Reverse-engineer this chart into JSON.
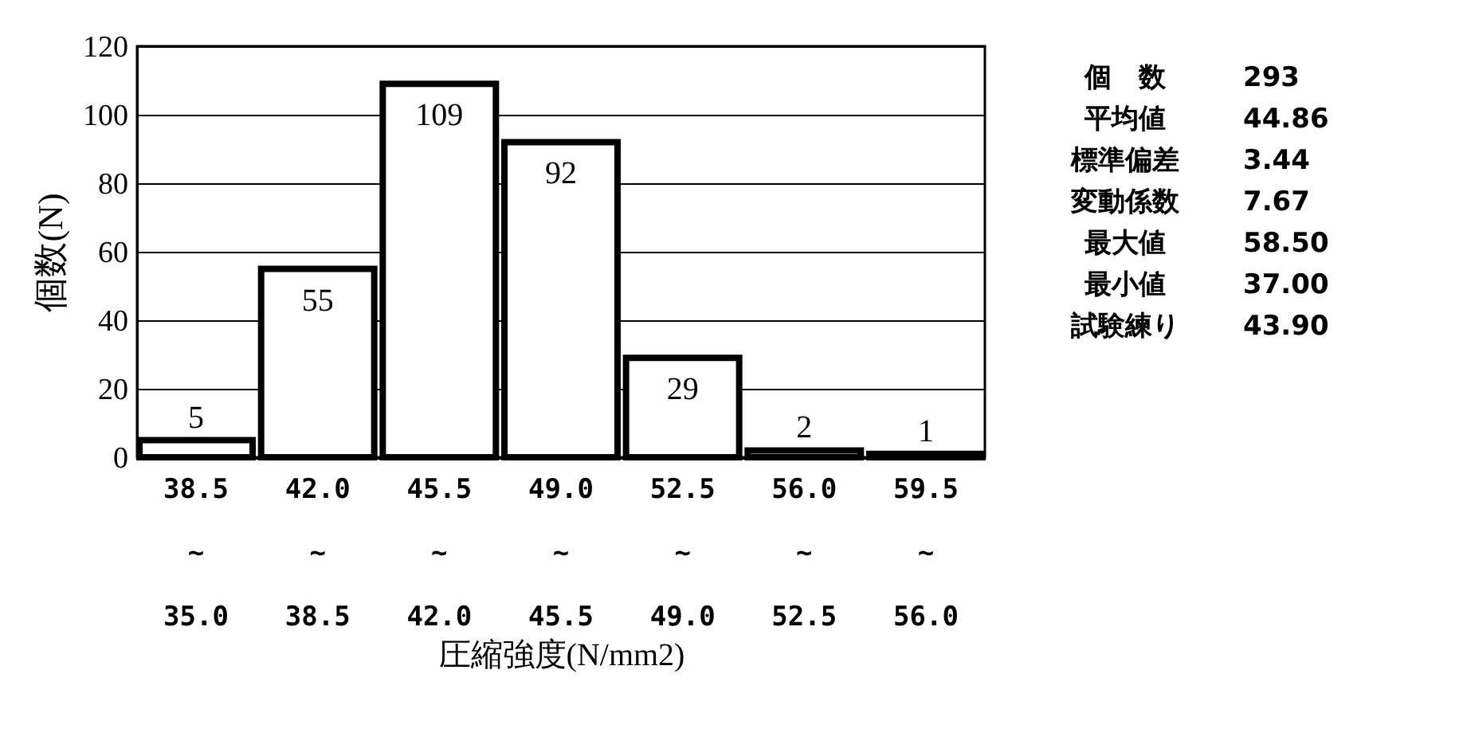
{
  "chart_data": {
    "type": "bar",
    "xlabel": "圧縮強度(N/mm2)",
    "ylabel": "個数(N)",
    "categories": [
      "38.5 ~ 35.0",
      "42.0 ~ 38.5",
      "45.5 ~ 42.0",
      "49.0 ~ 45.5",
      "52.5 ~ 49.0",
      "56.0 ~ 52.5",
      "59.5 ~ 56.0"
    ],
    "values": [
      5,
      55,
      109,
      92,
      29,
      2,
      1
    ],
    "color": "#ffffff",
    "ylim": [
      0,
      120
    ],
    "yticks": [
      0,
      20,
      40,
      60,
      80,
      100,
      120
    ],
    "grid": "y",
    "data_labels": true,
    "annotations": [
      "個　数 293",
      "平均値 44.86",
      "標準偏差 3.44",
      "変動係数 7.67",
      "最大値 58.50",
      "最小値 37.00",
      "試験練り 43.90"
    ]
  }
}
